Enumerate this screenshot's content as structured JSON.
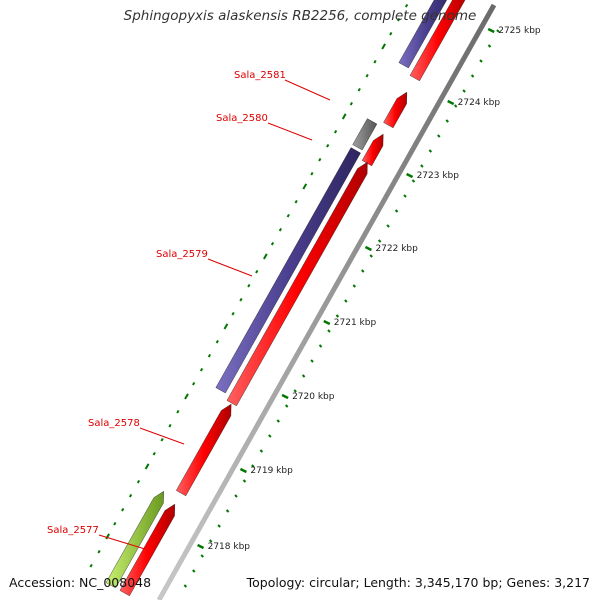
{
  "title": "Sphingopyxis alaskensis RB2256, complete genome",
  "footer": {
    "accession": "Accession: NC_008048",
    "summary": "Topology: circular; Length: 3,345,170 bp; Genes: 3,217"
  },
  "colors": {
    "forward_cds": "#ff0000",
    "reverse_cds": "#4b3f8f",
    "pseudo_gray": "#808080",
    "rna_green": "#9acd32",
    "backbone": "#8a8a8a",
    "tick": "#007700",
    "label": "#dd0000"
  },
  "gene_labels": [
    {
      "id": "g2581",
      "text": "Sala_2581"
    },
    {
      "id": "g2580",
      "text": "Sala_2580"
    },
    {
      "id": "g2579",
      "text": "Sala_2579"
    },
    {
      "id": "g2578",
      "text": "Sala_2578"
    },
    {
      "id": "g2577",
      "text": "Sala_2577"
    }
  ],
  "position_labels": [
    {
      "kbp": 2725,
      "text": "2725 kbp"
    },
    {
      "kbp": 2724,
      "text": "2724 kbp"
    },
    {
      "kbp": 2723,
      "text": "2723 kbp"
    },
    {
      "kbp": 2722,
      "text": "2722 kbp"
    },
    {
      "kbp": 2721,
      "text": "2721 kbp"
    },
    {
      "kbp": 2720,
      "text": "2720 kbp"
    },
    {
      "kbp": 2719,
      "text": "2719 kbp"
    },
    {
      "kbp": 2718,
      "text": "2718 kbp"
    }
  ]
}
